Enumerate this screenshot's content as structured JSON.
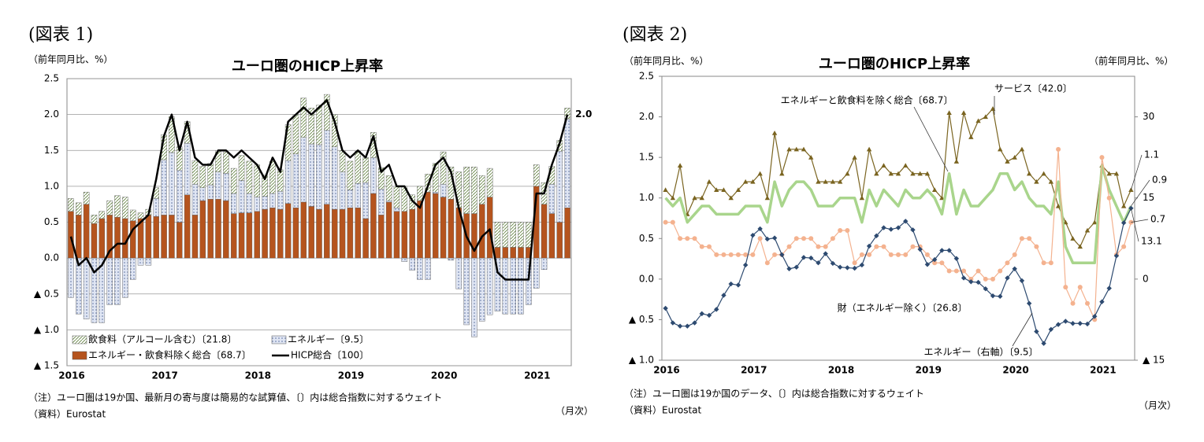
{
  "chart_data": [
    {
      "type": "bar",
      "header": "(図表 1)",
      "unit_label": "（前年同月比、%）",
      "title": "ユーロ圏のHICP上昇率",
      "notes": [
        "（注）ユーロ圏は19か国、最新月の寄与度は簡易的な試算値、〔〕内は総合指数に対するウェイト",
        "（資料）Eurostat"
      ],
      "x_unit": "（月次）",
      "categories": [
        "2016",
        null,
        null,
        null,
        null,
        null,
        null,
        null,
        null,
        null,
        null,
        null,
        "2017",
        null,
        null,
        null,
        null,
        null,
        null,
        null,
        null,
        null,
        null,
        null,
        "2018",
        null,
        null,
        null,
        null,
        null,
        null,
        null,
        null,
        null,
        null,
        null,
        "2019",
        null,
        null,
        null,
        null,
        null,
        null,
        null,
        null,
        null,
        null,
        null,
        "2020",
        null,
        null,
        null,
        null,
        null,
        null,
        null,
        null,
        null,
        null,
        null,
        "2021",
        null,
        null,
        null,
        null
      ],
      "ylim": [
        -1.5,
        2.5
      ],
      "yticks": [
        2.5,
        {
          "value": 2,
          "label": "2.0"
        },
        1.5,
        {
          "value": 1,
          "label": "1.0"
        },
        0.5,
        {
          "value": 0,
          "label": "0.0"
        },
        {
          "value": -0.5,
          "label": "▲ 0.5"
        },
        {
          "value": -1,
          "label": "▲ 1.0"
        },
        {
          "value": -1.5,
          "label": "▲ 1.5"
        }
      ],
      "grid": true,
      "stacked": true,
      "legend": "lower left",
      "series": [
        {
          "name": "エネルギー・飲食料除く総合〔68.7〕",
          "type": "bar",
          "color": "#b5541e",
          "pattern": "solid",
          "values": [
            0.65,
            0.6,
            0.75,
            0.48,
            0.55,
            0.6,
            0.57,
            0.55,
            0.52,
            0.55,
            0.6,
            0.58,
            0.6,
            0.6,
            0.5,
            0.88,
            0.6,
            0.8,
            0.82,
            0.82,
            0.8,
            0.62,
            0.63,
            0.63,
            0.65,
            0.68,
            0.7,
            0.68,
            0.76,
            0.7,
            0.78,
            0.72,
            0.68,
            0.75,
            0.68,
            0.68,
            0.7,
            0.7,
            0.55,
            0.9,
            0.6,
            0.78,
            0.65,
            0.65,
            0.68,
            0.8,
            0.92,
            0.9,
            0.85,
            0.82,
            0.7,
            0.62,
            0.62,
            0.75,
            0.85,
            0.15,
            0.15,
            0.15,
            0.15,
            0.15,
            1.0,
            0.75,
            0.62,
            0.5,
            0.7
          ]
        },
        {
          "name": "エネルギー〔9.5〕",
          "type": "bar",
          "color": "#5b6f9e",
          "pattern": "dots",
          "values": [
            -0.55,
            -0.78,
            -0.85,
            -0.9,
            -0.9,
            -0.65,
            -0.65,
            -0.55,
            -0.3,
            -0.1,
            -0.1,
            0.25,
            0.77,
            0.87,
            0.72,
            0.72,
            0.43,
            0.18,
            0.2,
            0.38,
            0.38,
            0.28,
            0.45,
            0.27,
            0.2,
            0.18,
            0.2,
            0.25,
            0.6,
            0.75,
            0.9,
            0.87,
            0.9,
            1.03,
            0.87,
            0.52,
            0.25,
            0.34,
            0.5,
            0.5,
            0.36,
            0.02,
            0.05,
            -0.05,
            -0.17,
            -0.3,
            -0.3,
            0.02,
            0.18,
            -0.03,
            -0.43,
            -0.93,
            -1.1,
            -0.88,
            -0.79,
            -0.74,
            -0.78,
            -0.78,
            -0.78,
            -0.65,
            -0.42,
            -0.16,
            0.41,
            0.99,
            1.24
          ]
        },
        {
          "name": "飲食料（アルコール含む）〔21.8〕",
          "type": "bar",
          "color": "#5f7f3c",
          "pattern": "hatch",
          "values": [
            0.18,
            0.17,
            0.17,
            0.12,
            0.1,
            0.2,
            0.3,
            0.3,
            0.15,
            0.08,
            0.08,
            0.15,
            0.35,
            0.5,
            0.33,
            0.3,
            0.33,
            0.3,
            0.3,
            0.3,
            0.3,
            0.35,
            0.35,
            0.45,
            0.45,
            0.3,
            0.45,
            0.3,
            0.5,
            0.55,
            0.55,
            0.5,
            0.55,
            0.5,
            0.45,
            0.3,
            0.4,
            0.45,
            0.35,
            0.35,
            0.3,
            0.35,
            0.3,
            0.35,
            0.2,
            0.2,
            0.25,
            0.4,
            0.45,
            0.45,
            0.5,
            0.65,
            0.65,
            0.4,
            0.4,
            0.35,
            0.35,
            0.35,
            0.35,
            0.35,
            0.3,
            0.3,
            0.25,
            0.15,
            0.15
          ]
        },
        {
          "name": "HICP総合〔100〕",
          "type": "line",
          "color": "#000000",
          "width": 2.5,
          "values": [
            0.3,
            -0.1,
            0.0,
            -0.2,
            -0.1,
            0.1,
            0.2,
            0.2,
            0.4,
            0.5,
            0.6,
            1.1,
            1.7,
            2.0,
            1.5,
            1.9,
            1.4,
            1.3,
            1.3,
            1.5,
            1.5,
            1.4,
            1.5,
            1.4,
            1.3,
            1.1,
            1.4,
            1.2,
            1.9,
            2.0,
            2.1,
            2.0,
            2.1,
            2.2,
            1.9,
            1.5,
            1.4,
            1.5,
            1.4,
            1.7,
            1.2,
            1.3,
            1.0,
            1.0,
            0.8,
            0.7,
            1.0,
            1.3,
            1.4,
            1.2,
            0.7,
            0.3,
            0.1,
            0.3,
            0.4,
            -0.2,
            -0.3,
            -0.3,
            -0.3,
            -0.3,
            0.9,
            0.9,
            1.3,
            1.6,
            2.0
          ],
          "value_labels": [
            null,
            null,
            null,
            null,
            null,
            null,
            null,
            null,
            null,
            null,
            null,
            null,
            null,
            null,
            null,
            null,
            null,
            null,
            null,
            null,
            null,
            null,
            null,
            null,
            null,
            null,
            null,
            null,
            null,
            null,
            null,
            null,
            null,
            null,
            null,
            null,
            null,
            null,
            null,
            null,
            null,
            null,
            null,
            null,
            null,
            null,
            null,
            null,
            null,
            null,
            null,
            null,
            null,
            null,
            null,
            null,
            null,
            null,
            null,
            null,
            null,
            null,
            null,
            null,
            "2.0"
          ]
        }
      ]
    },
    {
      "type": "line",
      "header": "(図表 2)",
      "unit_label": "（前年同月比、%）",
      "y2_unit_label": "（前年同月比、%）",
      "title": "ユーロ圏のHICP上昇率",
      "notes": [
        "（注）ユーロ圏は19か国のデータ、〔〕内は総合指数に対するウェイト",
        "（資料）Eurostat"
      ],
      "x_unit": "（月次）",
      "categories": [
        "2016",
        null,
        null,
        null,
        null,
        null,
        null,
        null,
        null,
        null,
        null,
        null,
        "2017",
        null,
        null,
        null,
        null,
        null,
        null,
        null,
        null,
        null,
        null,
        null,
        "2018",
        null,
        null,
        null,
        null,
        null,
        null,
        null,
        null,
        null,
        null,
        null,
        "2019",
        null,
        null,
        null,
        null,
        null,
        null,
        null,
        null,
        null,
        null,
        null,
        "2020",
        null,
        null,
        null,
        null,
        null,
        null,
        null,
        null,
        null,
        null,
        null,
        "2021",
        null,
        null,
        null,
        null
      ],
      "ylim": [
        -1,
        2.5
      ],
      "yticks": [
        2.5,
        {
          "value": 2,
          "label": "2.0"
        },
        1.5,
        {
          "value": 1,
          "label": "1.0"
        },
        0.5,
        {
          "value": 0,
          "label": "0.0"
        },
        {
          "value": -0.5,
          "label": "▲ 0.5"
        },
        {
          "value": -1,
          "label": "▲ 1.0"
        }
      ],
      "y2lim": [
        -15,
        37.5
      ],
      "y2ticks": [
        30,
        15,
        0,
        {
          "value": -15,
          "label": "▲ 15"
        }
      ],
      "grid": false,
      "series": [
        {
          "name": "サービス〔42.0〕",
          "color": "#7a6420",
          "marker": "triangle",
          "width": 1.2,
          "end_label": true,
          "values": [
            1.1,
            1.0,
            1.4,
            0.8,
            1.0,
            1.0,
            1.2,
            1.1,
            1.1,
            1.0,
            1.1,
            1.2,
            1.2,
            1.3,
            1.0,
            1.8,
            1.3,
            1.6,
            1.6,
            1.6,
            1.5,
            1.2,
            1.2,
            1.2,
            1.2,
            1.3,
            1.5,
            1.0,
            1.6,
            1.3,
            1.4,
            1.3,
            1.3,
            1.4,
            1.3,
            1.3,
            1.3,
            1.1,
            1.0,
            2.05,
            1.45,
            2.05,
            1.75,
            1.95,
            2.0,
            2.1,
            1.6,
            1.45,
            1.5,
            1.6,
            1.3,
            1.2,
            1.3,
            1.2,
            0.9,
            0.7,
            0.5,
            0.4,
            0.6,
            0.7,
            1.4,
            1.3,
            1.3,
            0.9,
            1.1
          ]
        },
        {
          "name": "エネルギーと飲食料を除く総合〔68.7〕",
          "color": "#a9d58c",
          "marker": "none",
          "width": 3.5,
          "end_label": true,
          "values": [
            1.0,
            0.9,
            1.0,
            0.7,
            0.8,
            0.9,
            0.9,
            0.8,
            0.8,
            0.8,
            0.8,
            0.9,
            0.9,
            0.9,
            0.7,
            1.2,
            0.9,
            1.1,
            1.2,
            1.2,
            1.1,
            0.9,
            0.9,
            0.9,
            1.0,
            1.0,
            1.0,
            0.7,
            1.1,
            0.9,
            1.1,
            1.0,
            0.9,
            1.1,
            1.0,
            1.0,
            1.1,
            1.0,
            0.8,
            1.3,
            0.8,
            1.1,
            0.9,
            0.9,
            1.0,
            1.1,
            1.3,
            1.3,
            1.1,
            1.2,
            1.0,
            0.9,
            0.9,
            0.8,
            1.2,
            0.4,
            0.2,
            0.2,
            0.2,
            0.2,
            1.4,
            1.1,
            0.9,
            0.7,
            0.9
          ]
        },
        {
          "name": "財（エネルギー除く）〔26.8〕",
          "color": "#f4b28f",
          "marker": "circle",
          "width": 1.2,
          "end_label": true,
          "values": [
            0.7,
            0.7,
            0.5,
            0.5,
            0.5,
            0.4,
            0.4,
            0.3,
            0.3,
            0.3,
            0.3,
            0.3,
            0.3,
            0.5,
            0.2,
            0.3,
            0.3,
            0.4,
            0.5,
            0.5,
            0.5,
            0.4,
            0.4,
            0.5,
            0.6,
            0.6,
            0.2,
            0.3,
            0.3,
            0.4,
            0.4,
            0.3,
            0.3,
            0.3,
            0.4,
            0.4,
            0.3,
            0.2,
            0.2,
            0.1,
            0.1,
            0.1,
            0.0,
            0.1,
            0.0,
            0.0,
            0.1,
            0.2,
            0.3,
            0.5,
            0.5,
            0.4,
            0.2,
            0.2,
            1.6,
            -0.1,
            -0.3,
            -0.1,
            -0.3,
            -0.5,
            1.5,
            1.0,
            0.3,
            0.4,
            0.7
          ]
        },
        {
          "name": "エネルギー（右軸）〔9.5〕",
          "color": "#2d4a70",
          "marker": "diamond",
          "width": 1.2,
          "axis": "y2",
          "end_label": true,
          "values": [
            -5.4,
            -8.1,
            -8.7,
            -8.7,
            -8.1,
            -6.4,
            -6.7,
            -5.6,
            -3.0,
            -0.9,
            -1.1,
            2.6,
            8.1,
            9.3,
            7.4,
            7.6,
            4.5,
            1.9,
            2.2,
            4.0,
            3.9,
            3.0,
            4.7,
            2.9,
            2.2,
            2.1,
            2.0,
            2.6,
            6.1,
            8.0,
            9.5,
            9.2,
            9.5,
            10.7,
            9.1,
            5.5,
            2.7,
            3.6,
            5.3,
            5.3,
            3.8,
            0.2,
            -0.5,
            -0.6,
            -1.8,
            -3.1,
            -3.2,
            0.2,
            1.9,
            -0.3,
            -4.5,
            -9.7,
            -11.9,
            -9.3,
            -8.4,
            -7.8,
            -8.2,
            -8.2,
            -8.3,
            -6.9,
            -4.2,
            -1.7,
            4.3,
            10.4,
            13.1
          ]
        }
      ]
    }
  ]
}
